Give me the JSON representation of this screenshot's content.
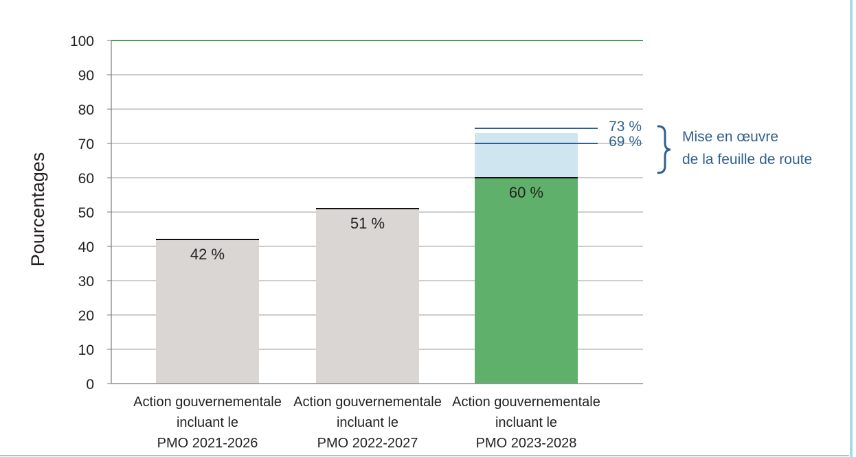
{
  "chart_data": {
    "type": "bar",
    "ylabel": "Pourcentages",
    "ylim": [
      0,
      100
    ],
    "yticks": [
      0,
      10,
      20,
      30,
      40,
      50,
      60,
      70,
      80,
      90,
      100
    ],
    "grid": true,
    "target_line": {
      "value": 100,
      "color": "#3fa24f"
    },
    "categories": [
      [
        "Action gouvernementale",
        "incluant le",
        "PMO 2021-2026"
      ],
      [
        "Action gouvernementale",
        "incluant le",
        "PMO 2022-2027"
      ],
      [
        "Action gouvernementale",
        "incluant le",
        "PMO 2023-2028"
      ]
    ],
    "values": [
      42,
      51,
      60
    ],
    "value_labels": [
      "42 %",
      "51 %",
      "60 %"
    ],
    "bar_colors": [
      "#d9d6d3",
      "#d9d6d3",
      "#5fb06a"
    ],
    "projection": {
      "category_index": 2,
      "range": [
        60,
        73
      ],
      "color": "#cfe6f1",
      "markers": [
        {
          "value": 73,
          "label": "73 %"
        },
        {
          "value": 69,
          "label": "69 %"
        }
      ],
      "note_lines": [
        "Mise en œuvre",
        "de la feuille de route"
      ]
    }
  },
  "colors": {
    "axis": "#7a7a7a",
    "grid": "#9b9b9b",
    "projection_line": "#2f5f8f",
    "right_border": "#a6dce8"
  }
}
